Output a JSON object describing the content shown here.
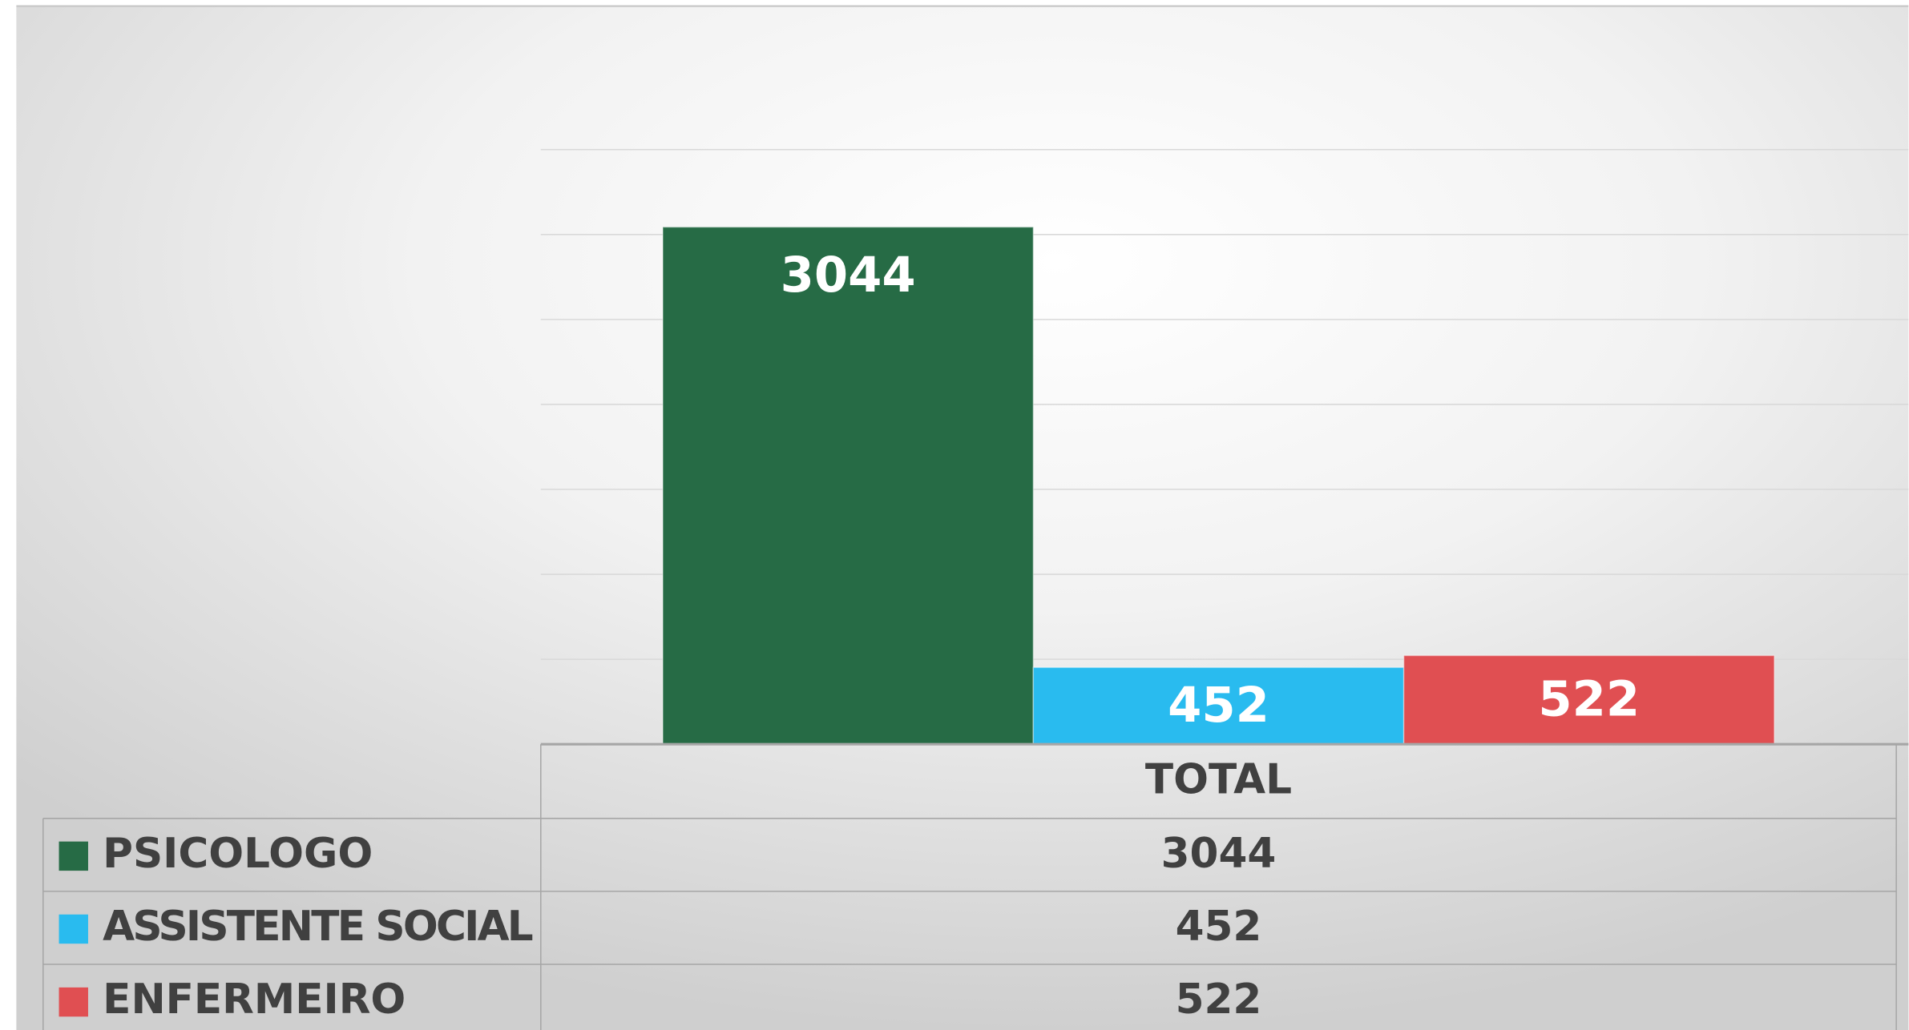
{
  "chart_data": {
    "type": "bar",
    "categories": [
      "TOTAL"
    ],
    "series": [
      {
        "name": "PSICOLOGO",
        "color": "#266b45",
        "values": [
          3044
        ]
      },
      {
        "name": "ASSISTENTE SOCIAL",
        "color": "#29bbef",
        "values": [
          452
        ]
      },
      {
        "name": "ENFERMEIRO",
        "color": "#e04f52",
        "values": [
          522
        ]
      }
    ],
    "ylim": [
      0,
      3500
    ],
    "yticks": [
      0,
      500,
      1000,
      1500,
      2000,
      2500,
      3000,
      3500
    ],
    "grid": true,
    "data_table": true
  }
}
